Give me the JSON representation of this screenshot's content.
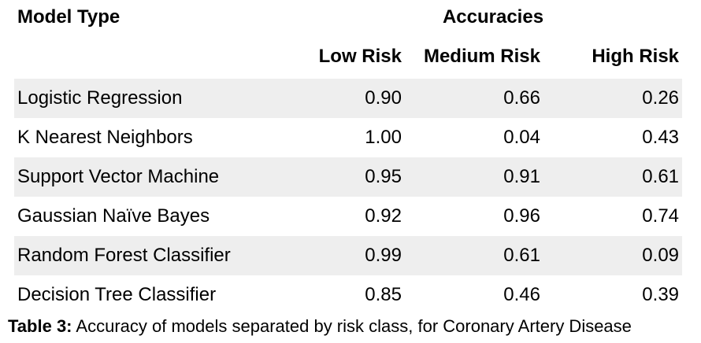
{
  "table": {
    "header": {
      "model_type": "Model Type",
      "accuracies": "Accuracies",
      "columns": [
        "Low Risk",
        "Medium Risk",
        "High Risk"
      ]
    },
    "rows": [
      {
        "model": "Logistic Regression",
        "low": "0.90",
        "medium": "0.66",
        "high": "0.26"
      },
      {
        "model": "K Nearest Neighbors",
        "low": "1.00",
        "medium": "0.04",
        "high": "0.43"
      },
      {
        "model": "Support Vector Machine",
        "low": "0.95",
        "medium": "0.91",
        "high": "0.61"
      },
      {
        "model": "Gaussian Naïve Bayes",
        "low": "0.92",
        "medium": "0.96",
        "high": "0.74"
      },
      {
        "model": "Random Forest Classifier",
        "low": "0.99",
        "medium": "0.61",
        "high": "0.09"
      },
      {
        "model": "Decision Tree Classifier",
        "low": "0.85",
        "medium": "0.46",
        "high": "0.39"
      }
    ]
  },
  "caption": {
    "label": "Table 3:",
    "text": " Accuracy of models separated by risk class, for Coronary Artery Disease"
  }
}
